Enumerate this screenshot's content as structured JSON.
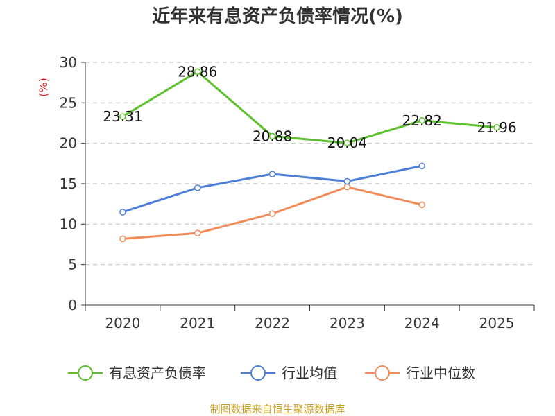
{
  "chart_data": {
    "type": "line",
    "title": "近年来有息资产负债率情况(%)",
    "ylabel": "(%)",
    "xlabel": "",
    "categories": [
      "2020",
      "2021",
      "2022",
      "2023",
      "2024",
      "2025"
    ],
    "ylim": [
      0,
      30
    ],
    "yticks": [
      0,
      5,
      10,
      15,
      20,
      25,
      30
    ],
    "grid": true,
    "legend_position": "bottom",
    "series": [
      {
        "name": "有息资产负债率",
        "color": "#5cc12c",
        "values": [
          23.31,
          28.86,
          20.88,
          20.04,
          22.82,
          21.96
        ],
        "labels": [
          "23.31",
          "28.86",
          "20.88",
          "20.04",
          "22.82",
          "21.96"
        ]
      },
      {
        "name": "行业均值",
        "color": "#4e7fd8",
        "values": [
          11.5,
          14.5,
          16.2,
          15.3,
          17.2,
          null
        ]
      },
      {
        "name": "行业中位数",
        "color": "#f08c5a",
        "values": [
          8.2,
          8.9,
          11.3,
          14.6,
          12.4,
          null
        ]
      }
    ],
    "source": "制图数据来自恒生聚源数据库"
  }
}
